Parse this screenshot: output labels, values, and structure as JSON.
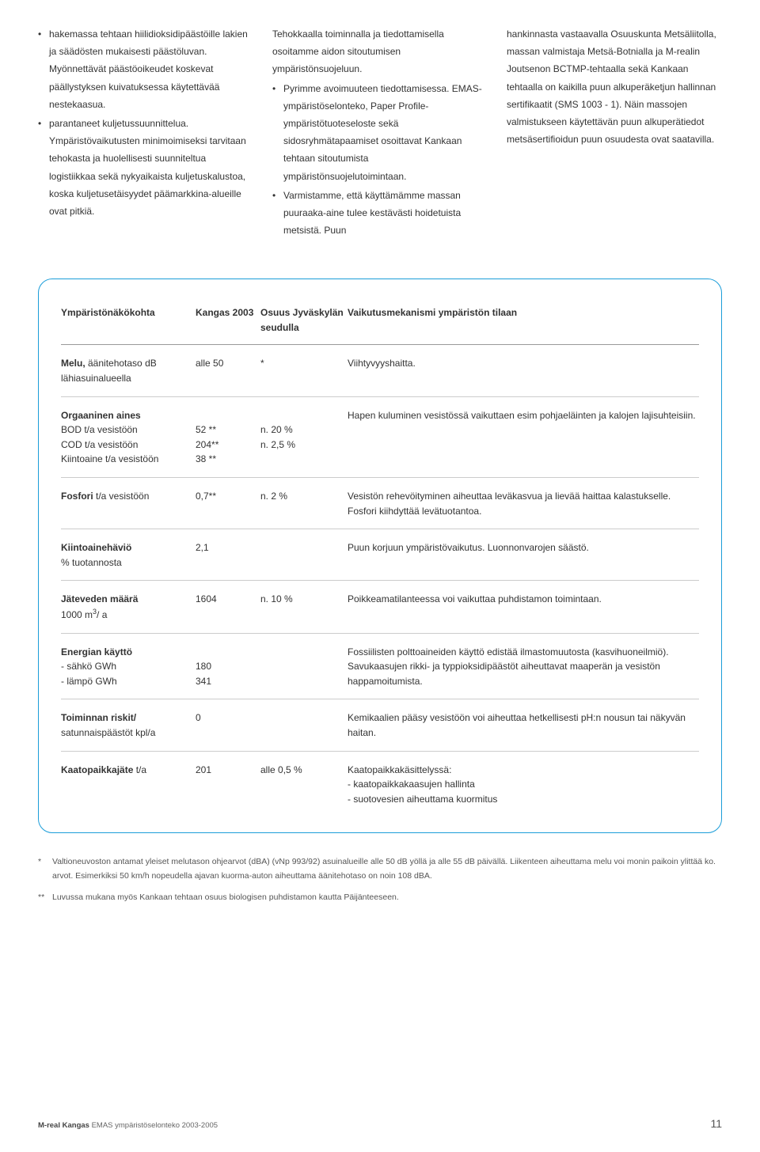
{
  "columns": {
    "c1": {
      "b1": "hakemassa tehtaan hiilidioksidi­päästöille lakien ja säädösten mukaisesti päästöluvan. Myönnettävät päästöoikeudet koskevat päällystyksen kuivatuksessa käytettävää nestekaasua.",
      "b2a": "parantaneet kuljetussuunnittelua. Ympäristövaikutusten minimoimiseksi tarvitaan tehokasta ja huolellisesti suunniteltua logistiikkaa sekä nykyaikaista kuljetuskalustoa, koska kuljetusetäisyydet päämarkkina-alueille ovat pitkiä."
    },
    "c2": {
      "p1": "Tehokkaalla toiminnalla ja tiedottamisella osoitamme aidon sitoutumisen ympäristönsuojeluun.",
      "b1": "Pyrimme avoimuuteen tiedottamisessa. EMAS-ympäristöselonteko, Paper Profile-ympäristötuoteseloste sekä sidosryhmätapaamiset osoittavat Kankaan tehtaan sitoutumista ympäristönsuojelutoimintaan.",
      "b2": "Varmistamme, että käyttämämme massan puuraaka-aine tulee kestävästi hoidetuista metsistä. Puun"
    },
    "c3": {
      "p1": "hankinnasta vastaavalla Osuuskunta Metsäliitolla, massan valmistaja Metsä-Botnialla ja M-realin Joutsenon BCTMP-tehtaalla sekä Kankaan tehtaalla on kaikilla puun alkuperäketjun hallinnan sertifikaatit (SMS 1003 - 1). Näin massojen valmistukseen käytettävän puun alkuperätiedot metsäsertifioidun puun osuudesta ovat saatavilla."
    }
  },
  "table": {
    "headers": {
      "h1": "Ympäristönäkökohta",
      "h2": "Kangas 2003",
      "h3": "Osuus Jyväskylän seudulla",
      "h4": "Vaikutusmekanismi ympäristön tilaan"
    },
    "rows": [
      {
        "c1": "<b>Melu,</b> äänitehotaso dB lähiasuinalueella",
        "c2": "alle 50",
        "c3": "*",
        "c4": "Viihtyvyyshaitta."
      },
      {
        "c1": "<b>Orgaaninen aines</b><br>BOD t/a vesistöön<br>COD t/a vesistöön<br>Kiintoaine t/a vesistöön",
        "c2": "<br>52 **<br>204**<br>38 **",
        "c3": "<br>n. 20 %<br>n. 2,5 %",
        "c4": "Hapen kuluminen vesistössä vaikuttaen esim pohjaeläinten ja kalojen lajisuhteisiin."
      },
      {
        "c1": "<b>Fosfori</b> t/a vesistöön",
        "c2": "0,7**",
        "c3": "n. 2 %",
        "c4": "Vesistön rehevöityminen aiheuttaa leväkasvua ja lievää haittaa kalastukselle. Fosfori kiihdyttää levätuotantoa."
      },
      {
        "c1": "<b>Kiintoainehäviö</b><br>% tuotannosta",
        "c2": "2,1",
        "c3": "",
        "c4": "Puun korjuun ympäristövaikutus. Luonnonvarojen säästö."
      },
      {
        "c1": "<b>Jäteveden määrä</b><br>1000 m<sup>3</sup>/ a",
        "c2": "1604",
        "c3": "n. 10 %",
        "c4": "Poikkeamatilanteessa voi vaikuttaa puhdistamon toimintaan."
      },
      {
        "c1": "<b>Energian käyttö</b><br>- sähkö GWh<br>- lämpö GWh",
        "c2": "<br>180<br>341",
        "c3": "",
        "c4": "Fossiilisten polttoaineiden käyttö edistää ilmastomuutosta (kasvihuoneilmiö). Savukaasujen rikki- ja typpioksidipäästöt aiheuttavat maaperän ja vesistön happamoitumista."
      },
      {
        "c1": "<b>Toiminnan riskit/</b> satunnaispäästöt kpl/a",
        "c2": "0",
        "c3": "",
        "c4": "Kemikaalien pääsy vesistöön voi aiheuttaa hetkellisesti pH:n nousun tai näkyvän haitan."
      },
      {
        "c1": "<b>Kaatopaikkajäte</b> t/a",
        "c2": "201",
        "c3": "alle 0,5 %",
        "c4": "Kaatopaikkakäsittelyssä:<br>- kaatopaikkakaasujen hallinta<br>- suotovesien aiheuttama kuormitus"
      }
    ]
  },
  "footnotes": {
    "f1_mark": "*",
    "f1": "Valtioneuvoston antamat yleiset melutason ohjearvot (dBA) (vNp 993/92) asuinalueille alle 50 dB yöllä ja alle 55 dB päivällä. Liikenteen aiheuttama melu voi monin paikoin ylittää ko. arvot. Esimerkiksi 50 km/h nopeudella ajavan kuorma-auton aiheuttama äänitehotaso on noin 108 dBA.",
    "f2_mark": "**",
    "f2": "Luvussa mukana myös Kankaan tehtaan osuus biologisen puhdistamon kautta Päijänteeseen."
  },
  "footer": {
    "src_bold": "M-real Kangas",
    "src_rest": " EMAS ympäristöselonteko 2003-2005",
    "page": "11"
  }
}
